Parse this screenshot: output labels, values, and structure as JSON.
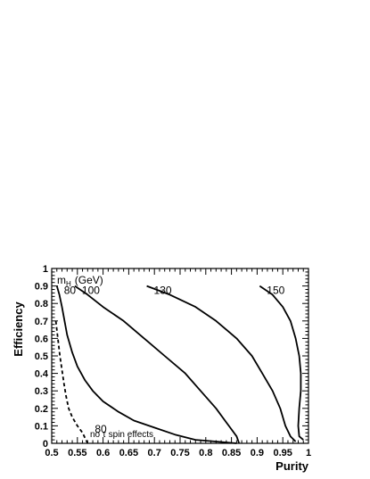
{
  "chart_data": {
    "type": "line",
    "title": "",
    "xlabel": "Purity",
    "ylabel": "Efficiency",
    "xlim": [
      0.5,
      1.0
    ],
    "ylim": [
      0,
      1.0
    ],
    "grid": false,
    "x_ticks": [
      "0.5",
      "0.55",
      "0.6",
      "0.65",
      "0.7",
      "0.75",
      "0.8",
      "0.85",
      "0.9",
      "0.95",
      "1"
    ],
    "y_ticks": [
      "0",
      "0.1",
      "0.2",
      "0.3",
      "0.4",
      "0.5",
      "0.6",
      "0.7",
      "0.8",
      "0.9",
      "1"
    ],
    "legend_header": {
      "m": "m",
      "sub": "H",
      "unit": "(GeV)"
    },
    "series": [
      {
        "name": "80",
        "style": "solid",
        "points": [
          [
            0.51,
            0.9
          ],
          [
            0.515,
            0.85
          ],
          [
            0.52,
            0.78
          ],
          [
            0.525,
            0.7
          ],
          [
            0.53,
            0.62
          ],
          [
            0.54,
            0.52
          ],
          [
            0.55,
            0.44
          ],
          [
            0.565,
            0.36
          ],
          [
            0.58,
            0.3
          ],
          [
            0.6,
            0.24
          ],
          [
            0.63,
            0.18
          ],
          [
            0.66,
            0.13
          ],
          [
            0.7,
            0.09
          ],
          [
            0.74,
            0.05
          ],
          [
            0.78,
            0.02
          ],
          [
            0.82,
            0.01
          ],
          [
            0.86,
            0.0
          ]
        ]
      },
      {
        "name": "100",
        "style": "solid",
        "points": [
          [
            0.545,
            0.9
          ],
          [
            0.57,
            0.85
          ],
          [
            0.6,
            0.78
          ],
          [
            0.64,
            0.7
          ],
          [
            0.68,
            0.6
          ],
          [
            0.72,
            0.5
          ],
          [
            0.76,
            0.4
          ],
          [
            0.79,
            0.3
          ],
          [
            0.82,
            0.2
          ],
          [
            0.845,
            0.1
          ],
          [
            0.86,
            0.04
          ],
          [
            0.865,
            0.0
          ]
        ]
      },
      {
        "name": "130",
        "style": "solid",
        "points": [
          [
            0.685,
            0.9
          ],
          [
            0.73,
            0.85
          ],
          [
            0.78,
            0.78
          ],
          [
            0.82,
            0.7
          ],
          [
            0.86,
            0.6
          ],
          [
            0.89,
            0.5
          ],
          [
            0.91,
            0.4
          ],
          [
            0.93,
            0.3
          ],
          [
            0.945,
            0.2
          ],
          [
            0.955,
            0.1
          ],
          [
            0.965,
            0.04
          ],
          [
            0.975,
            0.01
          ]
        ]
      },
      {
        "name": "150",
        "style": "solid",
        "points": [
          [
            0.905,
            0.9
          ],
          [
            0.93,
            0.85
          ],
          [
            0.95,
            0.78
          ],
          [
            0.965,
            0.7
          ],
          [
            0.975,
            0.6
          ],
          [
            0.982,
            0.5
          ],
          [
            0.985,
            0.4
          ],
          [
            0.985,
            0.3
          ],
          [
            0.982,
            0.2
          ],
          [
            0.98,
            0.1
          ],
          [
            0.982,
            0.04
          ],
          [
            0.99,
            0.02
          ]
        ]
      },
      {
        "name": "80",
        "style": "dashed",
        "points": [
          [
            0.508,
            0.7
          ],
          [
            0.512,
            0.6
          ],
          [
            0.516,
            0.5
          ],
          [
            0.52,
            0.42
          ],
          [
            0.524,
            0.34
          ],
          [
            0.528,
            0.27
          ],
          [
            0.533,
            0.2
          ],
          [
            0.54,
            0.15
          ],
          [
            0.55,
            0.1
          ],
          [
            0.56,
            0.06
          ],
          [
            0.565,
            0.03
          ],
          [
            0.57,
            0.0
          ]
        ]
      }
    ],
    "labels": [
      {
        "text": "80",
        "series": 0
      },
      {
        "text": "100",
        "series": 1
      },
      {
        "text": "130",
        "series": 2
      },
      {
        "text": "150",
        "series": 3
      },
      {
        "text": "80",
        "series": 4
      }
    ],
    "annotation": "no τ spin effects"
  }
}
